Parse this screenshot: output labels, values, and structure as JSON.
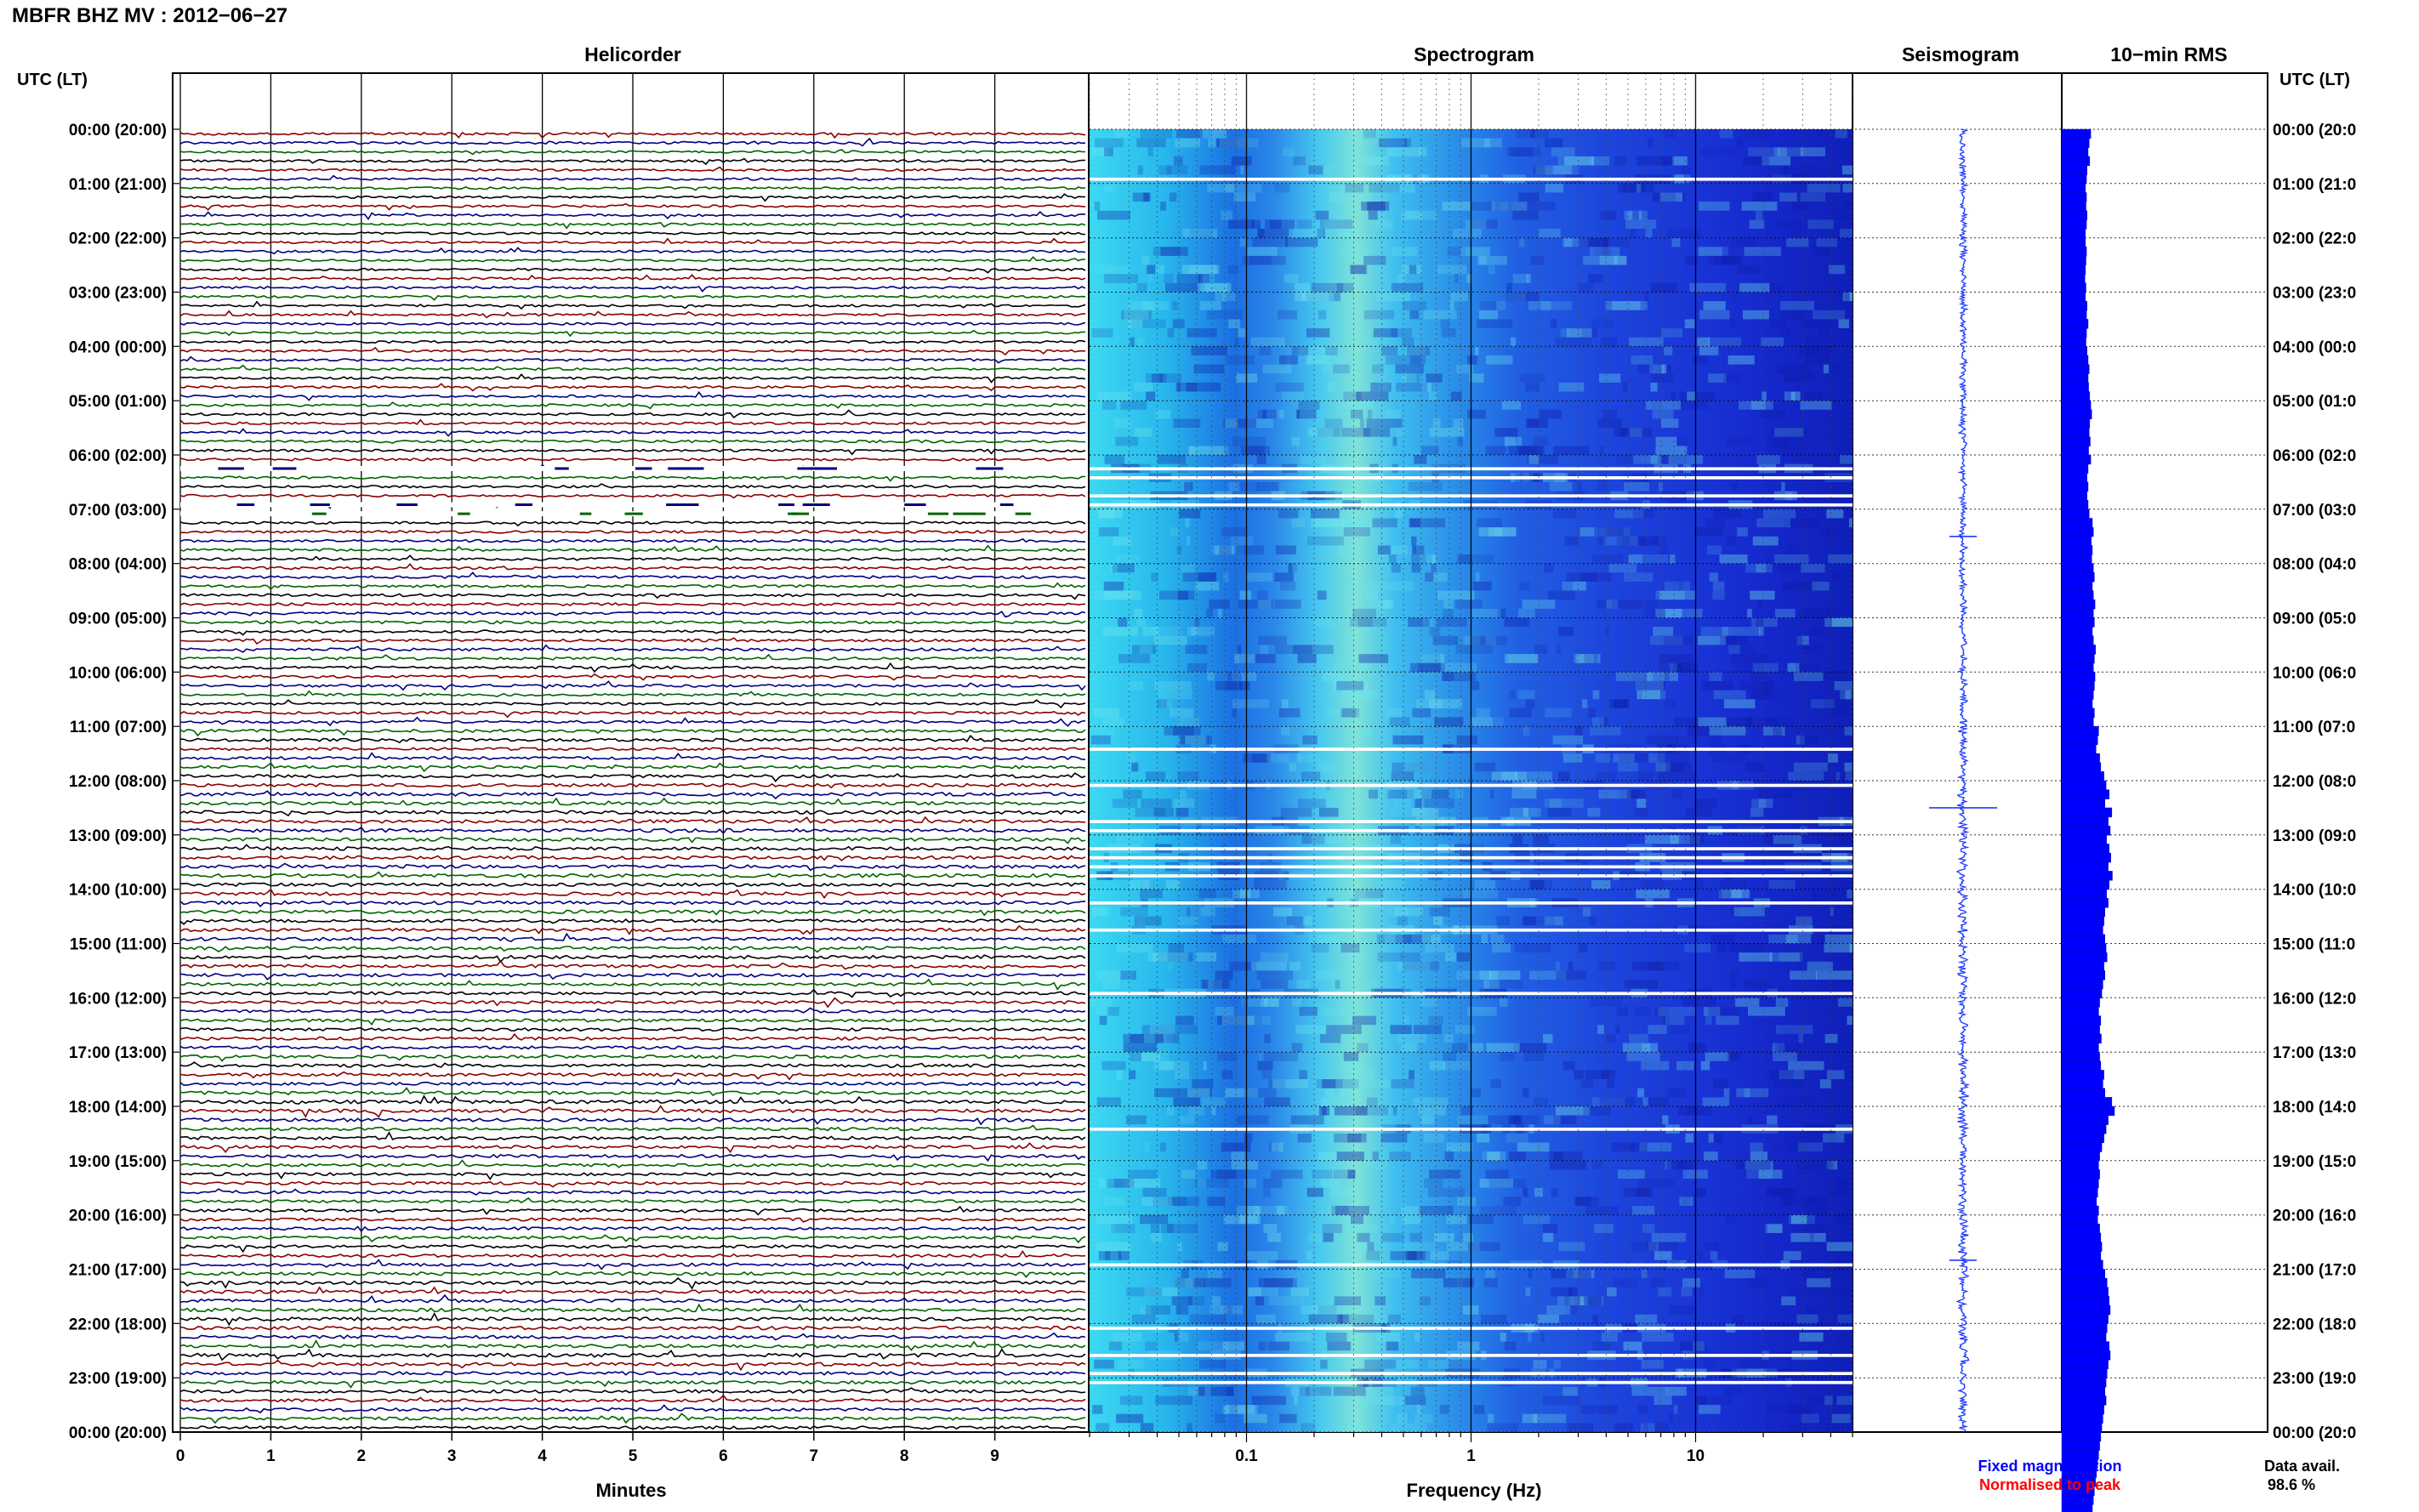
{
  "header": {
    "title": "MBFR BHZ MV : 2012−06−27"
  },
  "panels": {
    "helicorder": "Helicorder",
    "spectrogram": "Spectrogram",
    "seismogram": "Seismogram",
    "rms": "10−min RMS"
  },
  "axis": {
    "left_label": "UTC (LT)",
    "right_label": "UTC (LT)",
    "minutes_label": "Minutes",
    "frequency_label": "Frequency (Hz)"
  },
  "legend": {
    "fixed": "Fixed magnification",
    "normalised": "Normalised to peak",
    "fixed_color": "#0000ff",
    "normalised_color": "#ff0000"
  },
  "data_availability": {
    "label": "Data avail.",
    "value": "98.6 %"
  },
  "colors": {
    "trace_cycle": [
      "#8b0000",
      "#000080",
      "#006400",
      "#000000"
    ],
    "seismogram": "#1f3cff",
    "rms_fill": "#0000ff",
    "spectrogram_low": "#1c2ee0",
    "spectrogram_high": "#35e0f0"
  },
  "chart_data": [
    {
      "type": "line",
      "title": "Helicorder",
      "xlabel": "Minutes",
      "xlim": [
        0,
        10
      ],
      "x_ticks": [
        "0",
        "1",
        "2",
        "3",
        "4",
        "5",
        "6",
        "7",
        "8",
        "9"
      ],
      "rows_per_hour": 6,
      "hours_utc": [
        "00:00",
        "01:00",
        "02:00",
        "03:00",
        "04:00",
        "05:00",
        "06:00",
        "07:00",
        "08:00",
        "09:00",
        "10:00",
        "11:00",
        "12:00",
        "13:00",
        "14:00",
        "15:00",
        "16:00",
        "17:00",
        "18:00",
        "19:00",
        "20:00",
        "21:00",
        "22:00",
        "23:00",
        "00:00"
      ],
      "hour_labels_left": [
        "00:00 (20:00)",
        "01:00 (21:00)",
        "02:00 (22:00)",
        "03:00 (23:00)",
        "04:00 (00:00)",
        "05:00 (01:00)",
        "06:00 (02:00)",
        "07:00 (03:00)",
        "08:00 (04:00)",
        "09:00 (05:00)",
        "10:00 (06:00)",
        "11:00 (07:00)",
        "12:00 (08:00)",
        "13:00 (09:00)",
        "14:00 (10:00)",
        "15:00 (11:00)",
        "16:00 (12:00)",
        "17:00 (13:00)",
        "18:00 (14:00)",
        "19:00 (15:00)",
        "20:00 (16:00)",
        "21:00 (17:00)",
        "22:00 (18:00)",
        "23:00 (19:00)",
        "00:00 (20:00)"
      ],
      "hour_labels_right": [
        "00:00 (20:0",
        "01:00 (21:0",
        "02:00 (22:0",
        "03:00 (23:0",
        "04:00 (00:0",
        "05:00 (01:0",
        "06:00 (02:0",
        "07:00 (03:0",
        "08:00 (04:0",
        "09:00 (05:0",
        "10:00 (06:0",
        "11:00 (07:0",
        "12:00 (08:0",
        "13:00 (09:0",
        "14:00 (10:0",
        "15:00 (11:0",
        "16:00 (12:0",
        "17:00 (13:0",
        "18:00 (14:0",
        "19:00 (15:0",
        "20:00 (16:0",
        "21:00 (17:0",
        "22:00 (18:0",
        "23:00 (19:0",
        "00:00 (20:0"
      ],
      "gaps_utc": [
        "06:10",
        "06:50",
        "07:00"
      ]
    },
    {
      "type": "heatmap",
      "title": "Spectrogram",
      "xlabel": "Frequency (Hz)",
      "xscale": "log",
      "xlim": [
        0.02,
        50
      ],
      "x_ticks": [
        0.1,
        1,
        10
      ],
      "x_tick_labels": [
        "0.1",
        "1",
        "10"
      ],
      "peak_frequency_hz": 0.3,
      "gap_rows": [
        5,
        37,
        38,
        40,
        41,
        68,
        72,
        76,
        77,
        79,
        80,
        81,
        82,
        85,
        88,
        95,
        110,
        125,
        132,
        135,
        137,
        138,
        152
      ]
    },
    {
      "type": "line",
      "title": "Seismogram",
      "notable_spikes_utc": [
        "12:30",
        "07:30",
        "20:50"
      ]
    },
    {
      "type": "bar",
      "title": "10−min RMS",
      "orientation": "horizontal",
      "values_relative": [
        0.55,
        0.52,
        0.5,
        0.53,
        0.48,
        0.47,
        0.45,
        0.47,
        0.46,
        0.48,
        0.47,
        0.45,
        0.45,
        0.47,
        0.46,
        0.45,
        0.44,
        0.46,
        0.45,
        0.48,
        0.47,
        0.5,
        0.47,
        0.46,
        0.48,
        0.5,
        0.52,
        0.5,
        0.51,
        0.53,
        0.55,
        0.57,
        0.53,
        0.52,
        0.54,
        0.51,
        0.55,
        0.5,
        0.48,
        0.5,
        0.48,
        0.5,
        0.52,
        0.58,
        0.6,
        0.56,
        0.58,
        0.57,
        0.6,
        0.62,
        0.58,
        0.6,
        0.63,
        0.6,
        0.62,
        0.58,
        0.6,
        0.64,
        0.62,
        0.6,
        0.63,
        0.62,
        0.6,
        0.58,
        0.62,
        0.6,
        0.7,
        0.68,
        0.65,
        0.72,
        0.74,
        0.8,
        0.84,
        0.9,
        0.82,
        0.95,
        0.88,
        0.92,
        0.85,
        0.9,
        0.93,
        0.88,
        0.96,
        0.9,
        0.85,
        0.88,
        0.82,
        0.8,
        0.78,
        0.82,
        0.84,
        0.86,
        0.8,
        0.82,
        0.78,
        0.76,
        0.72,
        0.7,
        0.74,
        0.72,
        0.75,
        0.7,
        0.72,
        0.74,
        0.8,
        0.78,
        0.82,
        0.95,
        1.0,
        0.88,
        0.84,
        0.8,
        0.76,
        0.72,
        0.7,
        0.72,
        0.7,
        0.68,
        0.66,
        0.7,
        0.68,
        0.72,
        0.74,
        0.76,
        0.74,
        0.78,
        0.82,
        0.86,
        0.88,
        0.9,
        0.92,
        0.88,
        0.86,
        0.84,
        0.9,
        0.92,
        0.88,
        0.86,
        0.84,
        0.82,
        0.84,
        0.8,
        0.78,
        0.76,
        0.74,
        0.72,
        0.7,
        0.68,
        0.66,
        0.64,
        0.62,
        0.6,
        0.58,
        0.56
      ]
    }
  ]
}
